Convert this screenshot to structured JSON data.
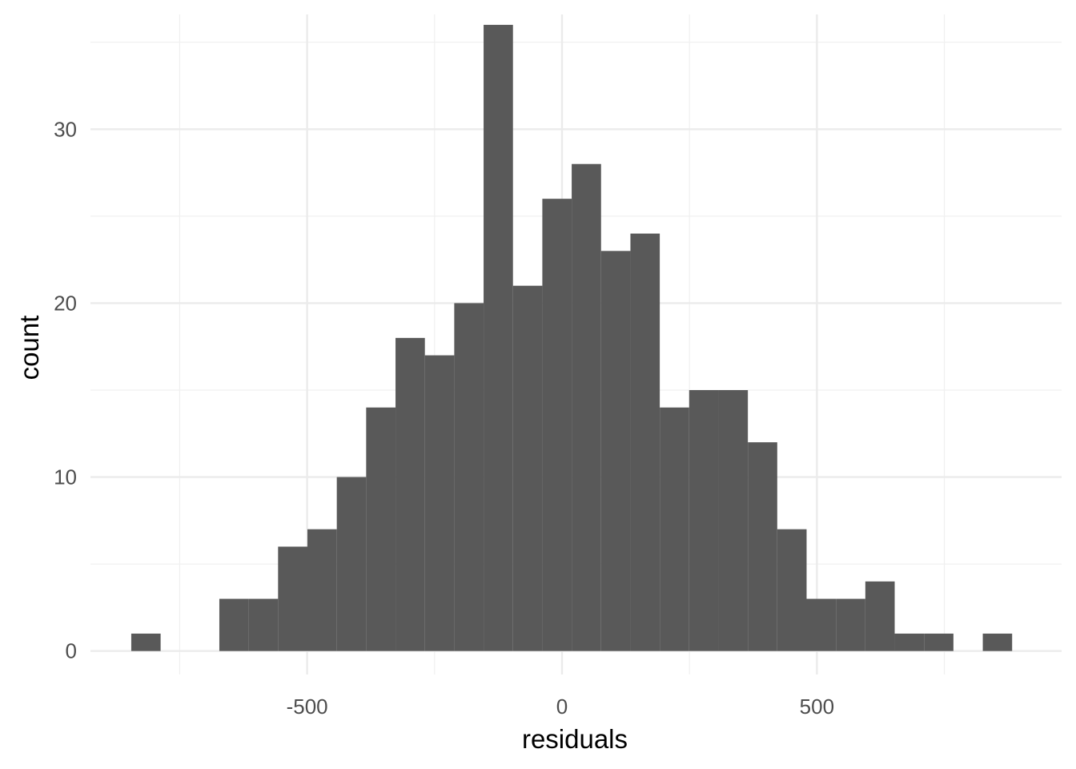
{
  "chart_data": {
    "type": "histogram",
    "title": "",
    "xlabel": "residuals",
    "ylabel": "count",
    "xlim": [
      -925,
      980
    ],
    "ylim": [
      -1.35,
      36.6
    ],
    "x_ticks": [
      -500,
      0,
      500
    ],
    "x_tick_labels": [
      "-500",
      "0",
      "500"
    ],
    "y_ticks": [
      0,
      10,
      20,
      30
    ],
    "y_tick_labels": [
      "0",
      "10",
      "20",
      "30"
    ],
    "x_minor_gridlines": [
      -750,
      -250,
      250,
      750
    ],
    "y_minor_gridlines": [
      5,
      15,
      25,
      35
    ],
    "grid": true,
    "bar_color": "#595959",
    "bin_width": 57.6,
    "bins": [
      {
        "x0": -845,
        "x1": -787.4,
        "count": 1
      },
      {
        "x0": -787.4,
        "x1": -729.8,
        "count": 0
      },
      {
        "x0": -729.8,
        "x1": -672.2,
        "count": 0
      },
      {
        "x0": -672.2,
        "x1": -614.6,
        "count": 3
      },
      {
        "x0": -614.6,
        "x1": -557.0,
        "count": 3
      },
      {
        "x0": -557.0,
        "x1": -499.4,
        "count": 6
      },
      {
        "x0": -499.4,
        "x1": -441.8,
        "count": 7
      },
      {
        "x0": -441.8,
        "x1": -384.2,
        "count": 10
      },
      {
        "x0": -384.2,
        "x1": -326.6,
        "count": 14
      },
      {
        "x0": -326.6,
        "x1": -269.0,
        "count": 18
      },
      {
        "x0": -269.0,
        "x1": -211.4,
        "count": 17
      },
      {
        "x0": -211.4,
        "x1": -153.8,
        "count": 20
      },
      {
        "x0": -153.8,
        "x1": -96.2,
        "count": 36
      },
      {
        "x0": -96.2,
        "x1": -38.6,
        "count": 21
      },
      {
        "x0": -38.6,
        "x1": 19.0,
        "count": 26
      },
      {
        "x0": 19.0,
        "x1": 76.6,
        "count": 28
      },
      {
        "x0": 76.6,
        "x1": 134.2,
        "count": 23
      },
      {
        "x0": 134.2,
        "x1": 191.8,
        "count": 24
      },
      {
        "x0": 191.8,
        "x1": 249.4,
        "count": 14
      },
      {
        "x0": 249.4,
        "x1": 307.0,
        "count": 15
      },
      {
        "x0": 307.0,
        "x1": 364.6,
        "count": 15
      },
      {
        "x0": 364.6,
        "x1": 422.2,
        "count": 12
      },
      {
        "x0": 422.2,
        "x1": 479.8,
        "count": 7
      },
      {
        "x0": 479.8,
        "x1": 537.4,
        "count": 3
      },
      {
        "x0": 537.4,
        "x1": 595.0,
        "count": 3
      },
      {
        "x0": 595.0,
        "x1": 652.6,
        "count": 4
      },
      {
        "x0": 652.6,
        "x1": 710.2,
        "count": 1
      },
      {
        "x0": 710.2,
        "x1": 767.8,
        "count": 1
      },
      {
        "x0": 767.8,
        "x1": 825.4,
        "count": 0
      },
      {
        "x0": 825.4,
        "x1": 883.0,
        "count": 1
      }
    ]
  }
}
